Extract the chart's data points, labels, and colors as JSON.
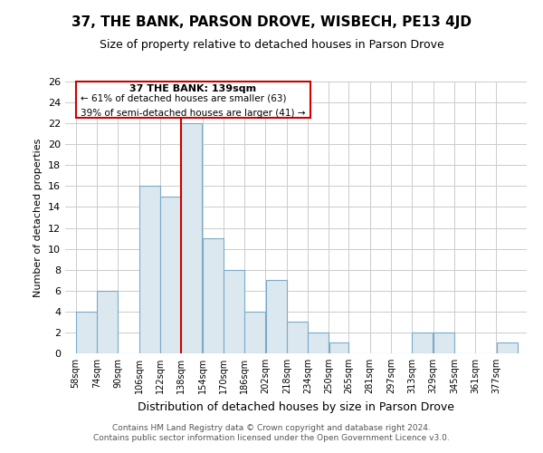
{
  "title": "37, THE BANK, PARSON DROVE, WISBECH, PE13 4JD",
  "subtitle": "Size of property relative to detached houses in Parson Drove",
  "xlabel": "Distribution of detached houses by size in Parson Drove",
  "ylabel": "Number of detached properties",
  "bar_color": "#dce8f0",
  "bar_edge_color": "#7aaac8",
  "marker_line_color": "#cc0000",
  "categories": [
    "58sqm",
    "74sqm",
    "90sqm",
    "106sqm",
    "122sqm",
    "138sqm",
    "154sqm",
    "170sqm",
    "186sqm",
    "202sqm",
    "218sqm",
    "234sqm",
    "250sqm",
    "265sqm",
    "281sqm",
    "297sqm",
    "313sqm",
    "329sqm",
    "345sqm",
    "361sqm",
    "377sqm"
  ],
  "bin_edges": [
    58,
    74,
    90,
    106,
    122,
    138,
    154,
    170,
    186,
    202,
    218,
    234,
    250,
    265,
    281,
    297,
    313,
    329,
    345,
    361,
    377,
    393
  ],
  "values": [
    4,
    6,
    0,
    16,
    15,
    22,
    11,
    8,
    4,
    7,
    3,
    2,
    1,
    0,
    0,
    0,
    2,
    2,
    0,
    0,
    1
  ],
  "ylim": [
    0,
    26
  ],
  "yticks": [
    0,
    2,
    4,
    6,
    8,
    10,
    12,
    14,
    16,
    18,
    20,
    22,
    24,
    26
  ],
  "annotation_title": "37 THE BANK: 139sqm",
  "annotation_line1": "← 61% of detached houses are smaller (63)",
  "annotation_line2": "39% of semi-detached houses are larger (41) →",
  "annotation_box_color": "#ffffff",
  "annotation_box_edge": "#cc0000",
  "footer_line1": "Contains HM Land Registry data © Crown copyright and database right 2024.",
  "footer_line2": "Contains public sector information licensed under the Open Government Licence v3.0.",
  "background_color": "#ffffff",
  "grid_color": "#cccccc"
}
